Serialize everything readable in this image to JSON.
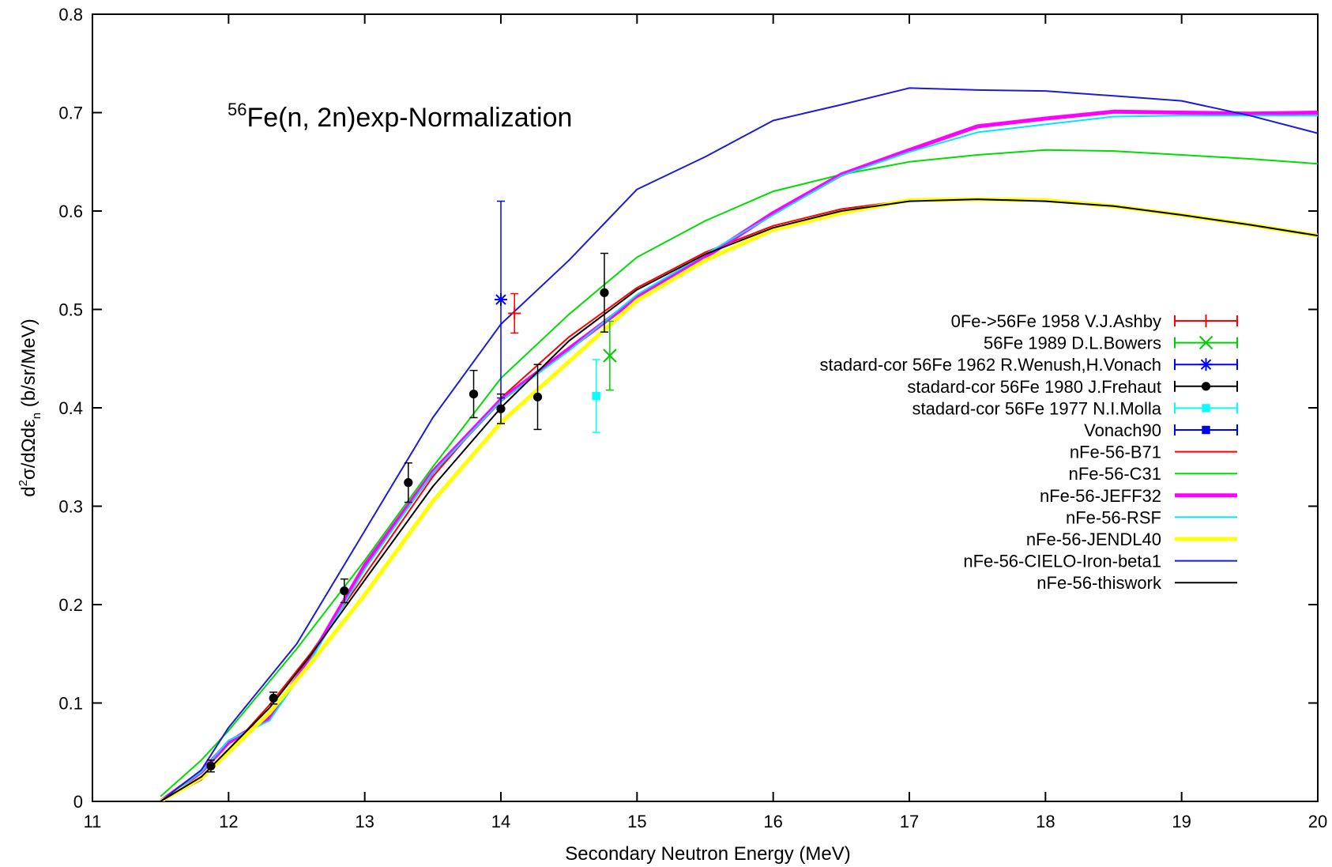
{
  "chart_data": {
    "type": "line",
    "title_parts": {
      "sup": "56",
      "main": "Fe(n, 2n)exp-Normalization"
    },
    "xlabel": "Secondary Neutron Energy (MeV)",
    "ylabel": "d²σ/dΩdε_n (b/sr/MeV)",
    "ylabel_parts": {
      "prefix": "d",
      "sup": "2",
      "mid": "σ/dΩdε",
      "sub": "n",
      "suffix": " (b/sr/MeV)"
    },
    "xlim": [
      11,
      20
    ],
    "ylim": [
      0,
      0.8
    ],
    "x_ticks": [
      11,
      12,
      13,
      14,
      15,
      16,
      17,
      18,
      19,
      20
    ],
    "y_ticks": [
      0,
      0.1,
      0.2,
      0.3,
      0.4,
      0.5,
      0.6,
      0.7,
      0.8
    ],
    "x_tick_labels": [
      "11",
      "12",
      "13",
      "14",
      "15",
      "16",
      "17",
      "18",
      "19",
      "20"
    ],
    "y_tick_labels": [
      "0",
      "0.1",
      "0.2",
      "0.3",
      "0.4",
      "0.5",
      "0.6",
      "0.7",
      "0.8"
    ],
    "grid": false,
    "legend_position": "right",
    "series": [
      {
        "name": "0Fe->56Fe 1958 V.J.Ashby",
        "kind": "points",
        "marker": "plus",
        "color": "#ff0000",
        "points": [
          {
            "x": 14.1,
            "y": 0.496,
            "ylo": 0.476,
            "yhi": 0.516
          }
        ]
      },
      {
        "name": "56Fe 1989 D.L.Bowers",
        "kind": "points",
        "marker": "cross",
        "color": "#00cc00",
        "points": [
          {
            "x": 14.8,
            "y": 0.453,
            "ylo": 0.418,
            "yhi": 0.488
          }
        ]
      },
      {
        "name": "stadard-cor 56Fe  1962 R.Wenush,H.Vonach",
        "kind": "points",
        "marker": "star",
        "color": "#0000ff",
        "points": [
          {
            "x": 14.0,
            "y": 0.51,
            "ylo": 0.41,
            "yhi": 0.61
          }
        ]
      },
      {
        "name": "stadard-cor 56Fe 1980 J.Frehaut",
        "kind": "points",
        "marker": "circle",
        "color": "#000000",
        "points": [
          {
            "x": 11.87,
            "y": 0.036,
            "ylo": 0.03,
            "yhi": 0.042
          },
          {
            "x": 12.33,
            "y": 0.105,
            "ylo": 0.099,
            "yhi": 0.111
          },
          {
            "x": 12.85,
            "y": 0.214,
            "ylo": 0.202,
            "yhi": 0.226
          },
          {
            "x": 13.32,
            "y": 0.324,
            "ylo": 0.304,
            "yhi": 0.344
          },
          {
            "x": 13.8,
            "y": 0.414,
            "ylo": 0.39,
            "yhi": 0.438
          },
          {
            "x": 14.0,
            "y": 0.399,
            "ylo": 0.384,
            "yhi": 0.414
          },
          {
            "x": 14.27,
            "y": 0.411,
            "ylo": 0.378,
            "yhi": 0.444
          },
          {
            "x": 14.76,
            "y": 0.517,
            "ylo": 0.477,
            "yhi": 0.557
          }
        ]
      },
      {
        "name": "stadard-cor 56Fe 1977 N.I.Molla",
        "kind": "points",
        "marker": "square",
        "color": "#00ffff",
        "points": [
          {
            "x": 14.7,
            "y": 0.412,
            "ylo": 0.375,
            "yhi": 0.449
          }
        ]
      },
      {
        "name": "Vonach90",
        "kind": "points",
        "marker": "square",
        "color": "#0000ff",
        "points": []
      },
      {
        "name": "nFe-56-B71",
        "kind": "line",
        "color": "#ff0000",
        "width": 2,
        "x": [
          11.5,
          11.8,
          12.0,
          12.3,
          12.6,
          13.0,
          13.5,
          14.0,
          14.5,
          15.0,
          15.5,
          16.0,
          16.5,
          17.0,
          17.5,
          18.0,
          18.5,
          19.0,
          19.5,
          20.0
        ],
        "y": [
          0.0,
          0.022,
          0.052,
          0.098,
          0.15,
          0.23,
          0.33,
          0.41,
          0.472,
          0.522,
          0.558,
          0.585,
          0.602,
          0.611,
          0.612,
          0.611,
          0.605,
          0.596,
          0.586,
          0.575
        ]
      },
      {
        "name": "nFe-56-C31",
        "kind": "line",
        "color": "#00dd00",
        "width": 2,
        "x": [
          11.5,
          11.8,
          12.0,
          12.5,
          13.0,
          13.5,
          14.0,
          14.5,
          15.0,
          15.5,
          16.0,
          16.5,
          17.0,
          17.5,
          18.0,
          18.5,
          19.0,
          19.5,
          20.0
        ],
        "y": [
          0.005,
          0.042,
          0.072,
          0.155,
          0.245,
          0.34,
          0.43,
          0.495,
          0.553,
          0.59,
          0.62,
          0.637,
          0.65,
          0.657,
          0.662,
          0.661,
          0.657,
          0.653,
          0.648
        ]
      },
      {
        "name": "nFe-56-JEFF32",
        "kind": "line",
        "color": "#ff00ff",
        "width": 5,
        "x": [
          11.5,
          11.8,
          12.0,
          12.3,
          12.6,
          13.0,
          13.5,
          14.0,
          14.5,
          15.0,
          15.5,
          16.0,
          16.5,
          17.0,
          17.5,
          18.0,
          18.5,
          19.0,
          19.5,
          20.0
        ],
        "y": [
          0.0,
          0.03,
          0.06,
          0.085,
          0.145,
          0.24,
          0.335,
          0.408,
          0.46,
          0.512,
          0.553,
          0.598,
          0.637,
          0.662,
          0.686,
          0.694,
          0.701,
          0.7,
          0.699,
          0.7
        ]
      },
      {
        "name": "nFe-56-RSF",
        "kind": "line",
        "color": "#00e5ff",
        "width": 2,
        "x": [
          11.5,
          11.8,
          12.0,
          12.3,
          12.6,
          13.0,
          13.5,
          14.0,
          14.5,
          15.0,
          15.5,
          16.0,
          16.5,
          17.0,
          17.5,
          18.0,
          18.5,
          19.0,
          19.5,
          20.0
        ],
        "y": [
          0.0,
          0.03,
          0.062,
          0.082,
          0.143,
          0.236,
          0.334,
          0.407,
          0.458,
          0.515,
          0.556,
          0.596,
          0.636,
          0.66,
          0.68,
          0.688,
          0.696,
          0.697,
          0.697,
          0.697
        ]
      },
      {
        "name": "nFe-56-JENDL40",
        "kind": "line",
        "color": "#ffff00",
        "width": 5,
        "x": [
          11.5,
          11.8,
          12.0,
          12.3,
          12.6,
          13.0,
          13.5,
          14.0,
          14.5,
          15.0,
          15.5,
          16.0,
          16.5,
          17.0,
          17.5,
          18.0,
          18.5,
          19.0,
          19.5,
          20.0
        ],
        "y": [
          0.0,
          0.024,
          0.05,
          0.09,
          0.14,
          0.21,
          0.305,
          0.385,
          0.447,
          0.509,
          0.55,
          0.581,
          0.598,
          0.611,
          0.612,
          0.611,
          0.605,
          0.596,
          0.586,
          0.575
        ]
      },
      {
        "name": "nFe-56-CIELO-Iron-beta1",
        "kind": "line",
        "color": "#1c1cd6",
        "width": 2,
        "x": [
          11.5,
          11.8,
          12.0,
          12.5,
          13.0,
          13.5,
          14.0,
          14.5,
          15.0,
          15.5,
          16.0,
          16.5,
          17.0,
          17.5,
          18.0,
          18.5,
          19.0,
          19.5,
          20.0
        ],
        "y": [
          0.0,
          0.032,
          0.075,
          0.16,
          0.275,
          0.39,
          0.485,
          0.55,
          0.622,
          0.655,
          0.692,
          0.708,
          0.725,
          0.723,
          0.722,
          0.717,
          0.712,
          0.697,
          0.679
        ]
      },
      {
        "name": "nFe-56-thiswork",
        "kind": "line",
        "color": "#000000",
        "width": 2,
        "x": [
          11.5,
          11.8,
          12.0,
          12.3,
          12.6,
          13.0,
          13.5,
          14.0,
          14.5,
          15.0,
          15.5,
          16.0,
          16.5,
          17.0,
          17.5,
          18.0,
          18.5,
          19.0,
          19.5,
          20.0
        ],
        "y": [
          0.0,
          0.025,
          0.053,
          0.095,
          0.148,
          0.225,
          0.32,
          0.4,
          0.468,
          0.52,
          0.556,
          0.583,
          0.6,
          0.61,
          0.612,
          0.61,
          0.605,
          0.596,
          0.586,
          0.575
        ]
      }
    ]
  }
}
